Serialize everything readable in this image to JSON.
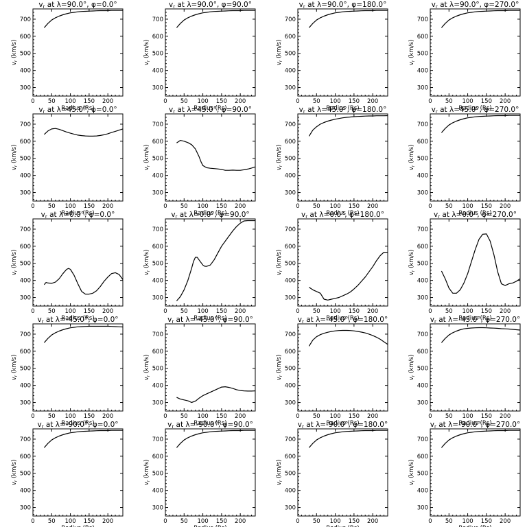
{
  "chart_data": {
    "type": "line",
    "grid_rows": 5,
    "grid_cols": 4,
    "xlabel": "Radius (Rs)",
    "ylabel": "v_r (km/s)",
    "xlim": [
      0,
      240
    ],
    "ylim": [
      250,
      760
    ],
    "xticks": [
      0,
      50,
      100,
      150,
      200
    ],
    "yticks": [
      300,
      400,
      500,
      600,
      700
    ],
    "panels": [
      {
        "title": "v_r at λ=90.0°, φ=0.0°",
        "x": [
          30,
          40,
          50,
          60,
          70,
          80,
          90,
          100,
          110,
          120,
          130,
          140,
          150,
          160,
          170,
          180,
          190,
          200,
          210,
          220,
          230,
          240
        ],
        "y": [
          650,
          675,
          695,
          708,
          718,
          726,
          732,
          737,
          740,
          743,
          745,
          746,
          747,
          748,
          749,
          750,
          750,
          750,
          751,
          751,
          751,
          751
        ]
      },
      {
        "title": "v_r at λ=90.0°, φ=90.0°",
        "x": [
          30,
          40,
          50,
          60,
          70,
          80,
          90,
          100,
          110,
          120,
          130,
          140,
          150,
          160,
          170,
          180,
          190,
          200,
          210,
          220,
          230,
          240
        ],
        "y": [
          650,
          675,
          695,
          708,
          718,
          726,
          732,
          737,
          740,
          743,
          745,
          746,
          747,
          748,
          749,
          750,
          750,
          750,
          751,
          751,
          751,
          751
        ]
      },
      {
        "title": "v_r at λ=90.0°, φ=180.0°",
        "x": [
          30,
          40,
          50,
          60,
          70,
          80,
          90,
          100,
          110,
          120,
          130,
          140,
          150,
          160,
          170,
          180,
          190,
          200,
          210,
          220,
          230,
          240
        ],
        "y": [
          650,
          675,
          695,
          708,
          718,
          726,
          732,
          737,
          740,
          743,
          745,
          746,
          747,
          748,
          749,
          750,
          750,
          750,
          751,
          751,
          751,
          751
        ]
      },
      {
        "title": "v_r at λ=90.0°, φ=270.0°",
        "x": [
          30,
          40,
          50,
          60,
          70,
          80,
          90,
          100,
          110,
          120,
          130,
          140,
          150,
          160,
          170,
          180,
          190,
          200,
          210,
          220,
          230,
          240
        ],
        "y": [
          650,
          675,
          695,
          708,
          718,
          726,
          732,
          737,
          740,
          743,
          745,
          746,
          747,
          748,
          749,
          750,
          750,
          750,
          751,
          751,
          751,
          751
        ]
      },
      {
        "title": "v_r at λ=45.0°, φ=0.0°",
        "x": [
          30,
          40,
          50,
          60,
          70,
          80,
          90,
          100,
          110,
          120,
          130,
          140,
          150,
          160,
          170,
          180,
          190,
          200,
          210,
          220,
          230,
          240
        ],
        "y": [
          640,
          660,
          672,
          675,
          670,
          662,
          654,
          647,
          641,
          636,
          633,
          631,
          630,
          630,
          631,
          634,
          638,
          644,
          651,
          658,
          665,
          672
        ]
      },
      {
        "title": "v_r at λ=45.0°, φ=90.0°",
        "x": [
          30,
          40,
          50,
          60,
          70,
          80,
          90,
          95,
          100,
          110,
          120,
          130,
          140,
          150,
          160,
          170,
          180,
          190,
          200,
          210,
          220,
          230,
          240
        ],
        "y": [
          590,
          605,
          600,
          592,
          580,
          555,
          510,
          480,
          458,
          445,
          442,
          440,
          438,
          435,
          430,
          430,
          431,
          430,
          430,
          433,
          437,
          443,
          450
        ]
      },
      {
        "title": "v_r at λ=45.0°, φ=180.0°",
        "x": [
          30,
          40,
          50,
          60,
          70,
          80,
          90,
          100,
          110,
          120,
          130,
          140,
          150,
          160,
          170,
          180,
          190,
          200,
          210,
          220,
          230,
          240
        ],
        "y": [
          630,
          665,
          685,
          700,
          710,
          718,
          724,
          729,
          733,
          737,
          740,
          742,
          744,
          745,
          746,
          747,
          748,
          748,
          749,
          749,
          749,
          750
        ]
      },
      {
        "title": "v_r at λ=45.0°, φ=270.0°",
        "x": [
          30,
          40,
          50,
          60,
          70,
          80,
          90,
          100,
          110,
          120,
          130,
          140,
          150,
          160,
          170,
          180,
          190,
          200,
          210,
          220,
          230,
          240
        ],
        "y": [
          650,
          675,
          695,
          708,
          718,
          726,
          732,
          737,
          740,
          743,
          745,
          746,
          747,
          748,
          749,
          750,
          750,
          750,
          751,
          751,
          751,
          751
        ]
      },
      {
        "title": "v_r at λ=0.0°, φ=0.0°",
        "x": [
          30,
          35,
          40,
          50,
          60,
          70,
          80,
          90,
          95,
          100,
          110,
          120,
          130,
          140,
          150,
          160,
          170,
          180,
          190,
          200,
          210,
          220,
          230,
          240
        ],
        "y": [
          375,
          388,
          385,
          383,
          390,
          410,
          440,
          465,
          470,
          465,
          430,
          380,
          335,
          320,
          320,
          325,
          340,
          365,
          395,
          420,
          440,
          445,
          435,
          405
        ]
      },
      {
        "title": "v_r at λ=0.0°, φ=90.0°",
        "x": [
          30,
          40,
          50,
          60,
          70,
          75,
          80,
          85,
          90,
          100,
          105,
          110,
          120,
          130,
          140,
          150,
          160,
          170,
          180,
          190,
          200,
          210,
          220,
          230,
          240
        ],
        "y": [
          280,
          305,
          345,
          400,
          470,
          510,
          535,
          535,
          520,
          490,
          483,
          482,
          490,
          520,
          560,
          600,
          630,
          660,
          690,
          715,
          735,
          748,
          750,
          750,
          750
        ]
      },
      {
        "title": "v_r at λ=0.0°, φ=180.0°",
        "x": [
          30,
          40,
          50,
          60,
          70,
          80,
          90,
          100,
          110,
          120,
          130,
          140,
          150,
          160,
          170,
          180,
          190,
          200,
          210,
          220,
          230,
          240
        ],
        "y": [
          360,
          345,
          335,
          325,
          290,
          285,
          290,
          295,
          300,
          310,
          320,
          332,
          350,
          370,
          395,
          420,
          450,
          480,
          515,
          545,
          565,
          565
        ]
      },
      {
        "title": "v_r at λ=0.0°, φ=270.0°",
        "x": [
          30,
          40,
          50,
          60,
          70,
          80,
          90,
          100,
          110,
          120,
          130,
          140,
          150,
          160,
          170,
          180,
          190,
          200,
          210,
          220,
          230,
          240
        ],
        "y": [
          455,
          410,
          355,
          325,
          325,
          345,
          385,
          440,
          510,
          580,
          640,
          670,
          672,
          630,
          550,
          450,
          380,
          370,
          380,
          385,
          395,
          410
        ]
      },
      {
        "title": "v_r at λ=-45.0°, φ=0.0°",
        "x": [
          30,
          40,
          50,
          60,
          70,
          80,
          90,
          100,
          110,
          120,
          130,
          140,
          150,
          160,
          170,
          180,
          190,
          200,
          210,
          220,
          230,
          240
        ],
        "y": [
          650,
          675,
          695,
          708,
          718,
          726,
          732,
          737,
          740,
          743,
          744,
          745,
          746,
          746,
          746,
          746,
          746,
          746,
          745,
          744,
          743,
          742
        ]
      },
      {
        "title": "v_r at λ=-45.0°, φ=90.0°",
        "x": [
          30,
          40,
          50,
          60,
          70,
          80,
          90,
          100,
          110,
          120,
          130,
          140,
          150,
          160,
          170,
          180,
          190,
          200,
          210,
          220,
          230,
          240
        ],
        "y": [
          330,
          320,
          315,
          310,
          300,
          308,
          325,
          340,
          350,
          360,
          370,
          380,
          390,
          392,
          388,
          382,
          375,
          370,
          368,
          367,
          367,
          368
        ]
      },
      {
        "title": "v_r at λ=-45.0°, φ=180.0°",
        "x": [
          30,
          40,
          50,
          60,
          70,
          80,
          90,
          100,
          110,
          120,
          130,
          140,
          150,
          160,
          170,
          180,
          190,
          200,
          210,
          220,
          230,
          240
        ],
        "y": [
          630,
          665,
          685,
          697,
          705,
          711,
          716,
          719,
          721,
          722,
          722,
          721,
          719,
          716,
          712,
          707,
          700,
          692,
          682,
          670,
          655,
          640
        ]
      },
      {
        "title": "v_r at λ=-45.0°, φ=270.0°",
        "x": [
          30,
          40,
          50,
          60,
          70,
          80,
          90,
          100,
          110,
          120,
          130,
          140,
          150,
          160,
          170,
          180,
          190,
          200,
          210,
          220,
          230,
          240
        ],
        "y": [
          650,
          675,
          695,
          708,
          718,
          726,
          731,
          734,
          736,
          737,
          738,
          738,
          737,
          736,
          735,
          734,
          732,
          731,
          730,
          728,
          726,
          724
        ]
      },
      {
        "title": "v_r at λ=-90.0°, φ=0.0°",
        "x": [
          30,
          40,
          50,
          60,
          70,
          80,
          90,
          100,
          110,
          120,
          130,
          140,
          150,
          160,
          170,
          180,
          190,
          200,
          210,
          220,
          230,
          240
        ],
        "y": [
          650,
          675,
          695,
          708,
          718,
          726,
          732,
          737,
          740,
          743,
          745,
          746,
          747,
          748,
          749,
          750,
          750,
          750,
          751,
          751,
          751,
          751
        ]
      },
      {
        "title": "v_r at λ=-90.0°, φ=90.0°",
        "x": [
          30,
          40,
          50,
          60,
          70,
          80,
          90,
          100,
          110,
          120,
          130,
          140,
          150,
          160,
          170,
          180,
          190,
          200,
          210,
          220,
          230,
          240
        ],
        "y": [
          650,
          675,
          695,
          708,
          718,
          726,
          732,
          737,
          740,
          743,
          745,
          746,
          747,
          748,
          749,
          750,
          750,
          750,
          751,
          751,
          751,
          751
        ]
      },
      {
        "title": "v_r at λ=-90.0°, φ=180.0°",
        "x": [
          30,
          40,
          50,
          60,
          70,
          80,
          90,
          100,
          110,
          120,
          130,
          140,
          150,
          160,
          170,
          180,
          190,
          200,
          210,
          220,
          230,
          240
        ],
        "y": [
          650,
          675,
          695,
          708,
          718,
          726,
          732,
          737,
          740,
          743,
          745,
          746,
          747,
          748,
          749,
          750,
          750,
          750,
          751,
          751,
          751,
          751
        ]
      },
      {
        "title": "v_r at λ=-90.0°, φ=270.0°",
        "x": [
          30,
          40,
          50,
          60,
          70,
          80,
          90,
          100,
          110,
          120,
          130,
          140,
          150,
          160,
          170,
          180,
          190,
          200,
          210,
          220,
          230,
          240
        ],
        "y": [
          650,
          675,
          695,
          708,
          718,
          726,
          732,
          737,
          740,
          743,
          745,
          746,
          747,
          748,
          749,
          750,
          750,
          750,
          751,
          751,
          751,
          751
        ]
      }
    ]
  }
}
